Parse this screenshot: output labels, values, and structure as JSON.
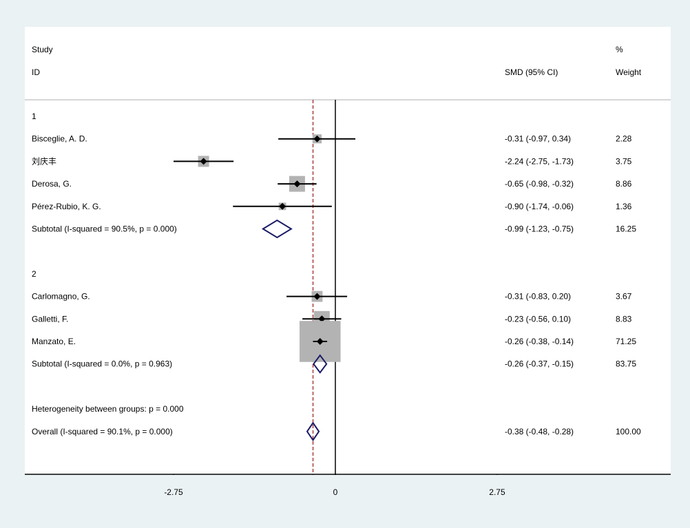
{
  "chart_data": {
    "type": "forest",
    "header": {
      "study_line1": "Study",
      "study_line2": "ID",
      "effect_label": "SMD (95% CI)",
      "weight_line1": "%",
      "weight_line2": "Weight"
    },
    "x_axis": {
      "range": [
        -5.5,
        5.8
      ],
      "ticks": [
        -2.75,
        0,
        2.75
      ],
      "tick_labels": [
        "-2.75",
        "0",
        "2.75"
      ]
    },
    "overall_line_x": -0.38,
    "rows": [
      {
        "kind": "group",
        "label": "1"
      },
      {
        "kind": "study",
        "label": "Bisceglie, A. D.",
        "est": -0.31,
        "lo": -0.97,
        "hi": 0.34,
        "ci_text": "-0.31 (-0.97, 0.34)",
        "weight": 2.28,
        "weight_text": "2.28"
      },
      {
        "kind": "study",
        "label": "刘庆丰",
        "est": -2.24,
        "lo": -2.75,
        "hi": -1.73,
        "ci_text": "-2.24 (-2.75, -1.73)",
        "weight": 3.75,
        "weight_text": "3.75"
      },
      {
        "kind": "study",
        "label": "Derosa, G.",
        "est": -0.65,
        "lo": -0.98,
        "hi": -0.32,
        "ci_text": "-0.65 (-0.98, -0.32)",
        "weight": 8.86,
        "weight_text": "8.86"
      },
      {
        "kind": "study",
        "label": "Pérez-Rubio, K. G.",
        "est": -0.9,
        "lo": -1.74,
        "hi": -0.06,
        "ci_text": "-0.90 (-1.74, -0.06)",
        "weight": 1.36,
        "weight_text": "1.36"
      },
      {
        "kind": "subtotal",
        "label": "Subtotal  (I-squared = 90.5%, p = 0.000)",
        "est": -0.99,
        "lo": -1.23,
        "hi": -0.75,
        "ci_text": "-0.99 (-1.23, -0.75)",
        "weight_text": "16.25"
      },
      {
        "kind": "blank"
      },
      {
        "kind": "group",
        "label": "2"
      },
      {
        "kind": "study",
        "label": "Carlomagno, G.",
        "est": -0.31,
        "lo": -0.83,
        "hi": 0.2,
        "ci_text": "-0.31 (-0.83, 0.20)",
        "weight": 3.67,
        "weight_text": "3.67"
      },
      {
        "kind": "study",
        "label": "Galletti, F.",
        "est": -0.23,
        "lo": -0.56,
        "hi": 0.1,
        "ci_text": "-0.23 (-0.56, 0.10)",
        "weight": 8.83,
        "weight_text": "8.83"
      },
      {
        "kind": "study",
        "label": "Manzato, E.",
        "est": -0.26,
        "lo": -0.38,
        "hi": -0.14,
        "ci_text": "-0.26 (-0.38, -0.14)",
        "weight": 71.25,
        "weight_text": "71.25"
      },
      {
        "kind": "subtotal",
        "label": "Subtotal  (I-squared = 0.0%, p = 0.963)",
        "est": -0.26,
        "lo": -0.37,
        "hi": -0.15,
        "ci_text": "-0.26 (-0.37, -0.15)",
        "weight_text": "83.75"
      },
      {
        "kind": "blank"
      },
      {
        "kind": "note",
        "label": "Heterogeneity between groups: p = 0.000"
      },
      {
        "kind": "overall",
        "label": "Overall  (I-squared = 90.1%, p = 0.000)",
        "est": -0.38,
        "lo": -0.48,
        "hi": -0.28,
        "ci_text": "-0.38 (-0.48, -0.28)",
        "weight_text": "100.00"
      }
    ],
    "colors": {
      "background": "#eaf2f3",
      "panel": "#ffffff",
      "weight_box": "#b3b3b3",
      "diamond": "#1a1a66",
      "overall_line": "#a02828",
      "axis": "#000000",
      "header_rule": "#c8c8c8"
    }
  }
}
